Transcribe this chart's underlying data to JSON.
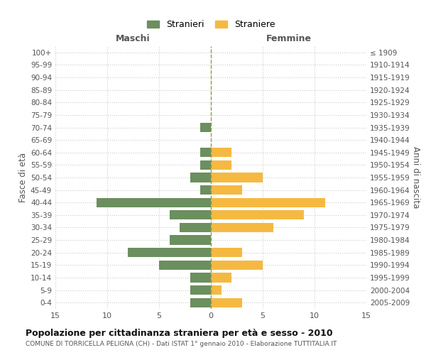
{
  "age_groups": [
    "0-4",
    "5-9",
    "10-14",
    "15-19",
    "20-24",
    "25-29",
    "30-34",
    "35-39",
    "40-44",
    "45-49",
    "50-54",
    "55-59",
    "60-64",
    "65-69",
    "70-74",
    "75-79",
    "80-84",
    "85-89",
    "90-94",
    "95-99",
    "100+"
  ],
  "birth_years": [
    "2005-2009",
    "2000-2004",
    "1995-1999",
    "1990-1994",
    "1985-1989",
    "1980-1984",
    "1975-1979",
    "1970-1974",
    "1965-1969",
    "1960-1964",
    "1955-1959",
    "1950-1954",
    "1945-1949",
    "1940-1944",
    "1935-1939",
    "1930-1934",
    "1925-1929",
    "1920-1924",
    "1915-1919",
    "1910-1914",
    "≤ 1909"
  ],
  "maschi": [
    2,
    2,
    2,
    5,
    8,
    4,
    3,
    4,
    11,
    1,
    2,
    1,
    1,
    0,
    1,
    0,
    0,
    0,
    0,
    0,
    0
  ],
  "femmine": [
    3,
    1,
    2,
    5,
    3,
    0,
    6,
    9,
    11,
    3,
    5,
    2,
    2,
    0,
    0,
    0,
    0,
    0,
    0,
    0,
    0
  ],
  "maschi_color": "#6b8f5e",
  "femmine_color": "#f5b942",
  "center_line_color": "#9a9a4a",
  "background_color": "#ffffff",
  "grid_color": "#cccccc",
  "title": "Popolazione per cittadinanza straniera per età e sesso - 2010",
  "subtitle": "COMUNE DI TORRICELLA PELIGNA (CH) - Dati ISTAT 1° gennaio 2010 - Elaborazione TUTTITALIA.IT",
  "ylabel_left": "Fasce di età",
  "ylabel_right": "Anni di nascita",
  "xlabel_maschi": "Maschi",
  "xlabel_femmine": "Femmine",
  "legend_maschi": "Stranieri",
  "legend_femmine": "Straniere",
  "xlim": 15,
  "bar_height": 0.75
}
